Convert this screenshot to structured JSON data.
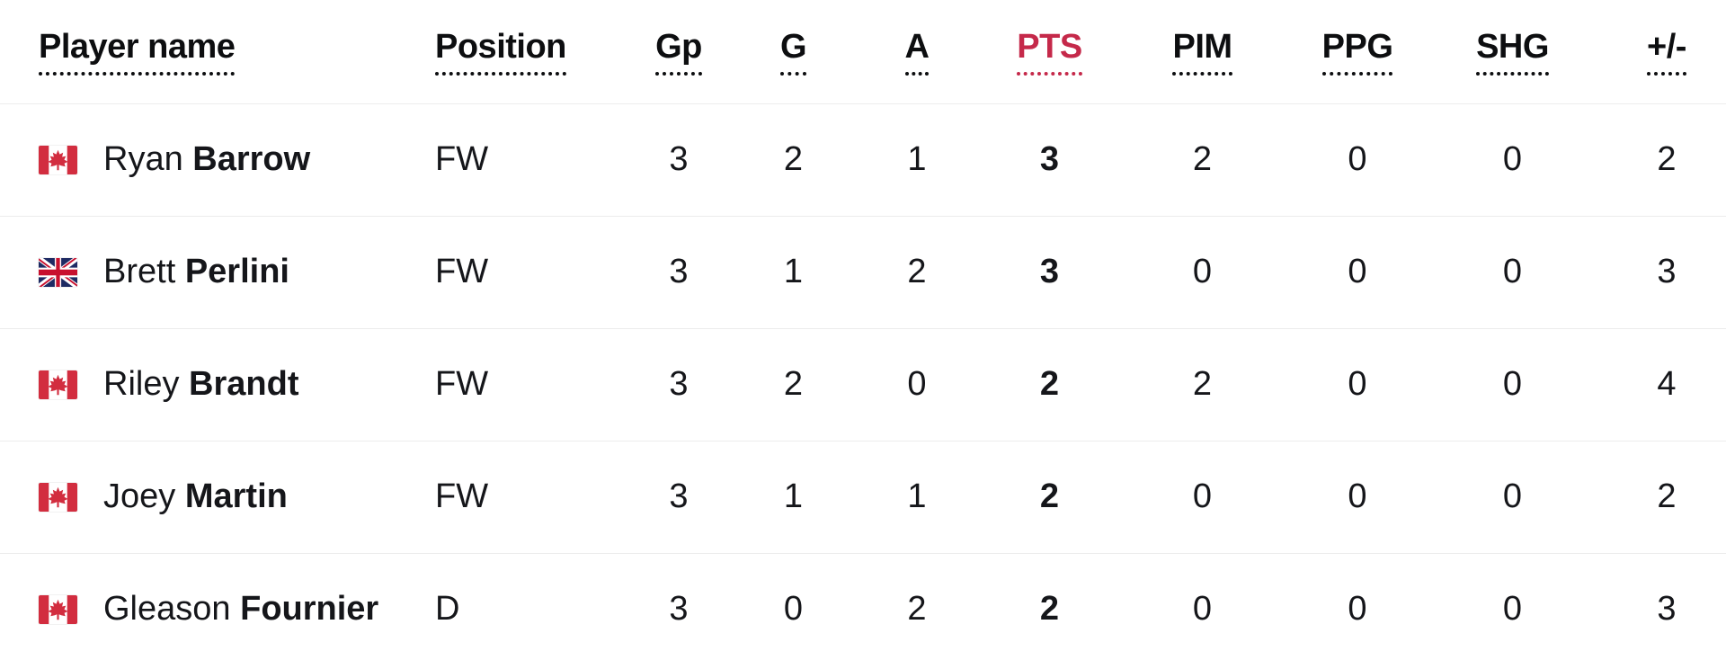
{
  "table": {
    "columns": [
      {
        "key": "player",
        "label": "Player name",
        "sorted": false
      },
      {
        "key": "position",
        "label": "Position",
        "sorted": false
      },
      {
        "key": "gp",
        "label": "Gp",
        "sorted": false
      },
      {
        "key": "g",
        "label": "G",
        "sorted": false
      },
      {
        "key": "a",
        "label": "A",
        "sorted": false
      },
      {
        "key": "pts",
        "label": "PTS",
        "sorted": true
      },
      {
        "key": "pim",
        "label": "PIM",
        "sorted": false
      },
      {
        "key": "ppg",
        "label": "PPG",
        "sorted": false
      },
      {
        "key": "shg",
        "label": "SHG",
        "sorted": false
      },
      {
        "key": "plusminus",
        "label": "+/-",
        "sorted": false
      }
    ],
    "rows": [
      {
        "first": "Ryan",
        "last": "Barrow",
        "nationality": "canada",
        "position": "FW",
        "gp": "3",
        "g": "2",
        "a": "1",
        "pts": "3",
        "pim": "2",
        "ppg": "0",
        "shg": "0",
        "plusminus": "2"
      },
      {
        "first": "Brett",
        "last": "Perlini",
        "nationality": "united-kingdom",
        "position": "FW",
        "gp": "3",
        "g": "1",
        "a": "2",
        "pts": "3",
        "pim": "0",
        "ppg": "0",
        "shg": "0",
        "plusminus": "3"
      },
      {
        "first": "Riley",
        "last": "Brandt",
        "nationality": "canada",
        "position": "FW",
        "gp": "3",
        "g": "2",
        "a": "0",
        "pts": "2",
        "pim": "2",
        "ppg": "0",
        "shg": "0",
        "plusminus": "4"
      },
      {
        "first": "Joey",
        "last": "Martin",
        "nationality": "canada",
        "position": "FW",
        "gp": "3",
        "g": "1",
        "a": "1",
        "pts": "2",
        "pim": "0",
        "ppg": "0",
        "shg": "0",
        "plusminus": "2"
      },
      {
        "first": "Gleason",
        "last": "Fournier",
        "nationality": "canada",
        "position": "D",
        "gp": "3",
        "g": "0",
        "a": "2",
        "pts": "2",
        "pim": "0",
        "ppg": "0",
        "shg": "0",
        "plusminus": "3"
      }
    ]
  },
  "colors": {
    "accent": "#c5294a",
    "header_text": "#0d0e10",
    "body_text": "#15161a",
    "row_divider": "#ececec",
    "canada_flag_red": "#d22d3f",
    "uk_flag_blue": "#1e2a63",
    "uk_flag_red": "#c8102e"
  }
}
